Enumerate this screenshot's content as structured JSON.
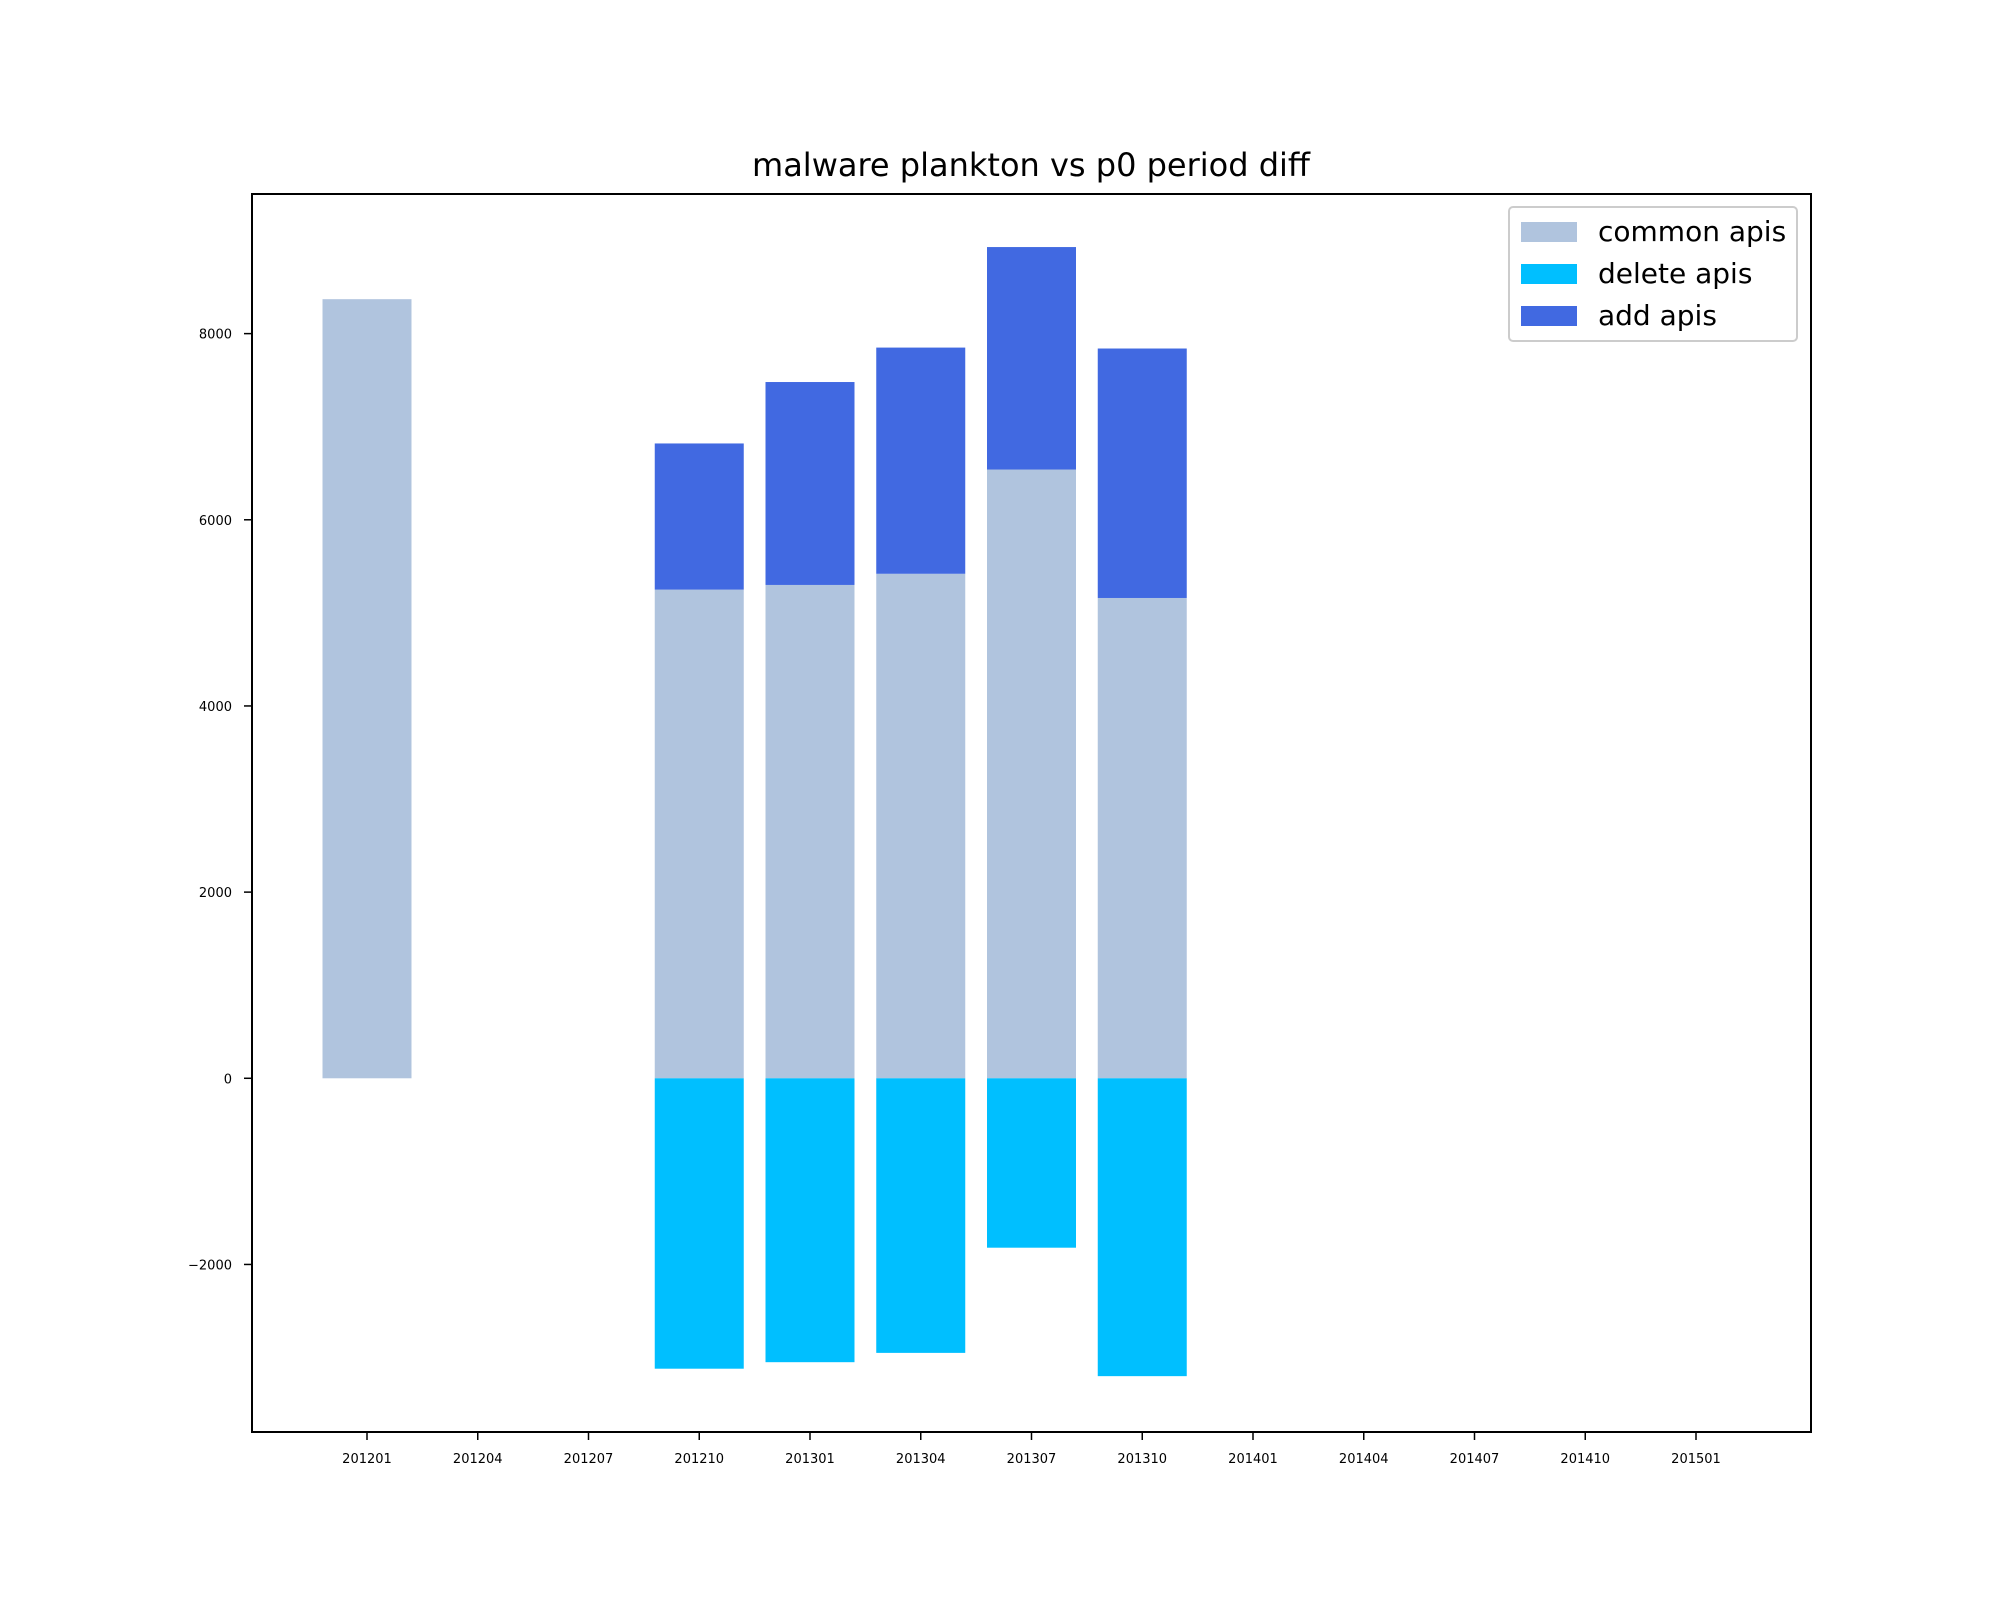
{
  "chart_data": {
    "type": "bar",
    "title": "malware plankton vs p0 period diff",
    "xlabel": "",
    "ylabel": "",
    "categories": [
      "201201",
      "201204",
      "201207",
      "201210",
      "201301",
      "201304",
      "201307",
      "201310",
      "201401",
      "201404",
      "201407",
      "201410",
      "201501"
    ],
    "ylim": [
      -3800,
      9500
    ],
    "yticks": [
      -2000,
      0,
      2000,
      4000,
      6000,
      8000
    ],
    "ytick_labels": [
      "−2000",
      "0",
      "2000",
      "4000",
      "6000",
      "8000"
    ],
    "stacked": true,
    "grid": false,
    "legend_position": "top-right",
    "series": [
      {
        "name": "common apis",
        "color": "#b0c4de",
        "values": [
          8370,
          null,
          null,
          5250,
          5300,
          5420,
          6540,
          5160,
          null,
          null,
          null,
          null,
          null
        ]
      },
      {
        "name": "delete apis",
        "color": "#00bfff",
        "values": [
          null,
          null,
          null,
          -3120,
          -3050,
          -2950,
          -1820,
          -3200,
          null,
          null,
          null,
          null,
          null
        ]
      },
      {
        "name": "add apis",
        "color": "#4169e1",
        "values": [
          null,
          null,
          null,
          1570,
          2180,
          2430,
          2390,
          2680,
          null,
          null,
          null,
          null,
          null
        ]
      }
    ]
  }
}
